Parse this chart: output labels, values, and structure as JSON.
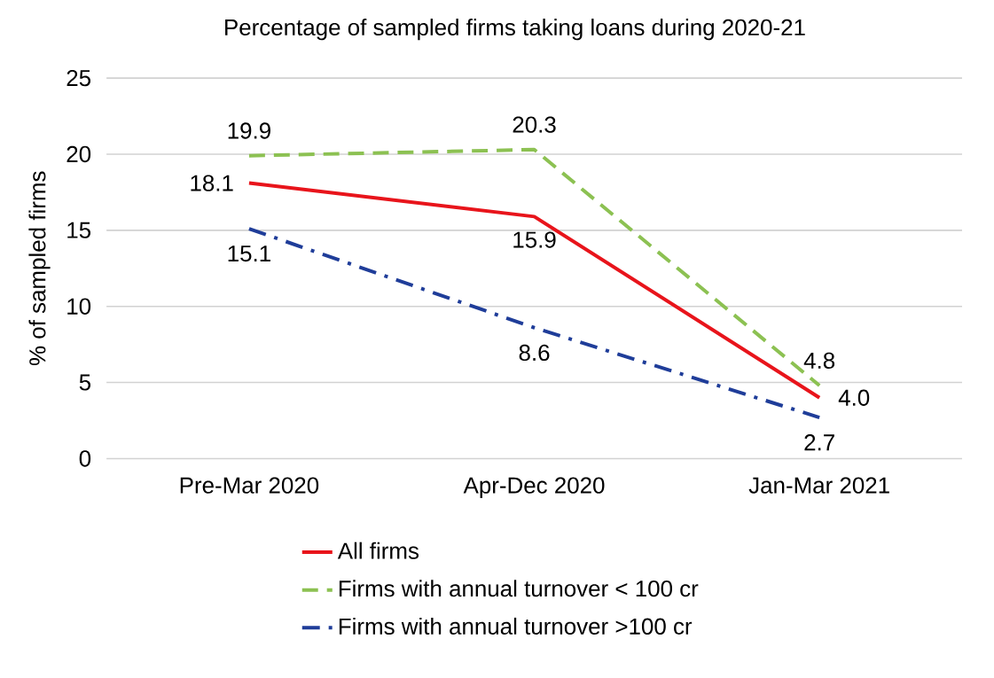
{
  "chart_data": {
    "type": "line",
    "title": "Percentage of sampled firms taking loans during 2020-21",
    "ylabel": "% of sampled firms",
    "categories": [
      "Pre-Mar 2020",
      "Apr-Dec 2020",
      "Jan-Mar 2021"
    ],
    "series": [
      {
        "name": "All firms",
        "color": "#e8141b",
        "line_style": "solid",
        "values": [
          18.1,
          15.9,
          4.0
        ],
        "value_labels": [
          "18.1",
          "15.9",
          "4.0"
        ]
      },
      {
        "name": "Firms with annual turnover < 100 cr",
        "color": "#8cc152",
        "line_style": "dashed",
        "values": [
          19.9,
          20.3,
          4.8
        ],
        "value_labels": [
          "19.9",
          "20.3",
          "4.8"
        ]
      },
      {
        "name": "Firms with annual turnover >100 cr",
        "color": "#1f3d99",
        "line_style": "dashdot",
        "values": [
          15.1,
          8.6,
          2.7
        ],
        "value_labels": [
          "15.1",
          "8.6",
          "2.7"
        ]
      }
    ],
    "ylim": [
      0,
      25
    ],
    "yticks": [
      0,
      5,
      10,
      15,
      20,
      25
    ],
    "grid": "y",
    "legend": "bottom",
    "marker": "none"
  }
}
